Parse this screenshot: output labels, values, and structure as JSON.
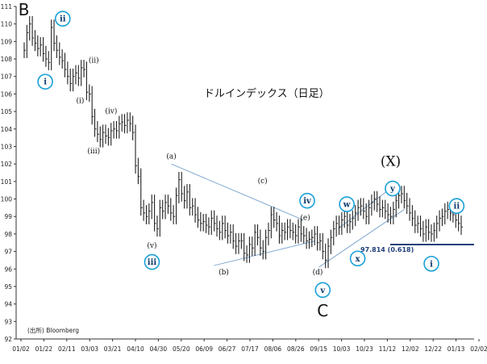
{
  "chart_data": {
    "type": "line",
    "title": "ドルインデックス（日足）",
    "source": "(出所) Bloomberg",
    "ylim": [
      92,
      111
    ],
    "yticks": [
      92,
      93,
      94,
      95,
      96,
      97,
      98,
      99,
      100,
      101,
      102,
      103,
      104,
      105,
      106,
      107,
      108,
      109,
      110,
      111
    ],
    "xticks": [
      "01/02",
      "01/22",
      "02/11",
      "03/03",
      "03/21",
      "04/10",
      "04/30",
      "05/20",
      "06/09",
      "06/27",
      "07/17",
      "08/06",
      "08/26",
      "09/15",
      "10/03",
      "10/23",
      "11/12",
      "12/02",
      "12/22",
      "01/13",
      "02/02"
    ],
    "series": [
      {
        "values": [
          108.5,
          109.5,
          110.0,
          109.2,
          108.9,
          108.6,
          108.8,
          108.3,
          108.0,
          107.8,
          109.8,
          108.9,
          108.5,
          108.1,
          107.9,
          107.4,
          107.0,
          106.6,
          107.0,
          107.2,
          106.9,
          107.5,
          107.4,
          106.1,
          106.0,
          104.7,
          104.0,
          103.7,
          103.4,
          103.8,
          103.6,
          103.5,
          103.9,
          104.0,
          103.9,
          104.3,
          104.4,
          104.2,
          104.5,
          104.3,
          103.8,
          101.9,
          101.3,
          99.5,
          99.2,
          99.0,
          99.3,
          99.8,
          98.6,
          98.3,
          99.5,
          99.3,
          99.8,
          99.6,
          99.2,
          99.0,
          100.2,
          101.1,
          100.3,
          99.9,
          100.4,
          99.5,
          99.6,
          99.1,
          98.8,
          98.6,
          98.7,
          98.5,
          98.4,
          98.9,
          98.6,
          98.3,
          98.1,
          98.6,
          98.2,
          97.9,
          98.1,
          97.6,
          97.3,
          97.6,
          97.6,
          96.9,
          96.8,
          97.4,
          97.2,
          98.1,
          97.8,
          97.2,
          97.0,
          97.8,
          98.2,
          99.1,
          98.8,
          98.6,
          97.9,
          98.2,
          98.1,
          98.4,
          98.2,
          98.1,
          97.9,
          98.4,
          98.0,
          97.9,
          97.6,
          97.7,
          97.8,
          98.0,
          97.5,
          97.6,
          97.0,
          96.5,
          97.3,
          97.8,
          98.3,
          98.6,
          98.4,
          98.8,
          99.0,
          98.5,
          98.7,
          98.9,
          99.2,
          99.5,
          99.6,
          99.3,
          99.0,
          99.5,
          99.8,
          100.0,
          99.7,
          99.4,
          99.5,
          99.3,
          99.1,
          99.0,
          99.4,
          99.9,
          100.2,
          100.3,
          99.9,
          99.6,
          99.2,
          98.9,
          98.5,
          98.6,
          98.3,
          98.0,
          98.4,
          98.1,
          98.0,
          98.2,
          98.6,
          98.9,
          99.0,
          99.3,
          99.4,
          99.2,
          99.1,
          98.8,
          98.6,
          98.4
        ]
      }
    ],
    "ohlc_style": "daily bars",
    "annotations": [
      {
        "text": "B",
        "style": "big",
        "x": 0.02,
        "y": 110.5
      },
      {
        "text": "ii",
        "style": "circle",
        "x": 0.12,
        "y": 110.3
      },
      {
        "text": "i",
        "style": "circle",
        "x": 0.075,
        "y": 106.7
      },
      {
        "text": "(ii)",
        "style": "wave",
        "x": 0.2,
        "y": 107.8
      },
      {
        "text": "(i)",
        "style": "wave",
        "x": 0.165,
        "y": 105.5
      },
      {
        "text": "(iv)",
        "style": "wave",
        "x": 0.245,
        "y": 104.9
      },
      {
        "text": "(iii)",
        "style": "wave",
        "x": 0.2,
        "y": 102.6
      },
      {
        "text": "(v)",
        "style": "wave",
        "x": 0.35,
        "y": 97.2
      },
      {
        "text": "iii",
        "style": "circle",
        "x": 0.35,
        "y": 96.4
      },
      {
        "text": "(a)",
        "style": "wave",
        "x": 0.4,
        "y": 102.3
      },
      {
        "text": "(b)",
        "style": "wave",
        "x": 0.535,
        "y": 95.7
      },
      {
        "text": "(c)",
        "style": "wave",
        "x": 0.635,
        "y": 100.9
      },
      {
        "text": "iv",
        "style": "circle",
        "x": 0.75,
        "y": 99.9
      },
      {
        "text": "(e)",
        "style": "wave",
        "x": 0.745,
        "y": 98.8
      },
      {
        "text": "(d)",
        "style": "wave",
        "x": 0.777,
        "y": 95.7
      },
      {
        "text": "v",
        "style": "circle",
        "x": 0.79,
        "y": 94.8
      },
      {
        "text": "C",
        "style": "big",
        "x": 0.79,
        "y": 93.3
      },
      {
        "text": "w",
        "style": "circle",
        "x": 0.852,
        "y": 99.7
      },
      {
        "text": "x",
        "style": "circle",
        "x": 0.88,
        "y": 96.6
      },
      {
        "text": "(X)",
        "style": "bigx",
        "x": 0.965,
        "y": 101.9
      },
      {
        "text": "y",
        "style": "circle",
        "x": 0.97,
        "y": 100.6
      },
      {
        "text": "ii",
        "style": "circle",
        "x": 1.135,
        "y": 99.6
      },
      {
        "text": "i",
        "style": "circle",
        "x": 1.07,
        "y": 96.3
      }
    ],
    "level": {
      "label": "97.814 (0.618)",
      "value": 97.814
    },
    "trendlines": [
      {
        "from": [
          0.4,
          102.0
        ],
        "to": [
          0.74,
          98.8
        ]
      },
      {
        "from": [
          0.51,
          96.2
        ],
        "to": [
          0.77,
          97.6
        ]
      },
      {
        "from": [
          0.83,
          98.3
        ],
        "to": [
          0.97,
          100.7
        ]
      },
      {
        "from": [
          0.78,
          96.1
        ],
        "to": [
          1.0,
          99.4
        ]
      }
    ]
  }
}
